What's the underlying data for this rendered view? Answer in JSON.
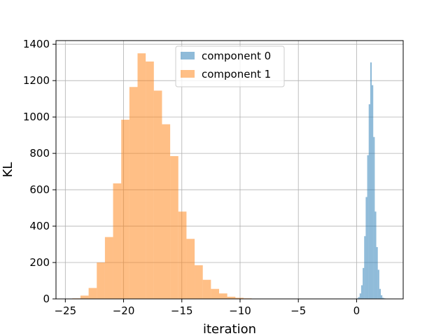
{
  "chart_data": {
    "type": "bar",
    "xlabel": "iteration",
    "ylabel": "KL",
    "xlim": [
      -25.8,
      4.0
    ],
    "ylim": [
      0,
      1420
    ],
    "xticks": [
      -25,
      -20,
      -15,
      -10,
      -5,
      0
    ],
    "yticks": [
      0,
      200,
      400,
      600,
      800,
      1000,
      1200,
      1400
    ],
    "grid": true,
    "legend_position": "top-center",
    "series": [
      {
        "name": "component 0",
        "color": "#1f77b4",
        "opacity": 0.5,
        "bin_edges": [
          0.0,
          0.13,
          0.26,
          0.39,
          0.52,
          0.65,
          0.78,
          0.91,
          1.04,
          1.17,
          1.3,
          1.43,
          1.56,
          1.69,
          1.82,
          1.95,
          2.08,
          2.21,
          2.34,
          2.47,
          2.6,
          2.73
        ],
        "counts": [
          3,
          10,
          30,
          75,
          170,
          345,
          560,
          790,
          1070,
          1300,
          1175,
          890,
          480,
          285,
          160,
          55,
          20,
          6,
          3,
          2,
          1
        ]
      },
      {
        "name": "component 1",
        "color": "#ff7f0e",
        "opacity": 0.5,
        "bin_edges": [
          -24.4,
          -23.7,
          -23.0,
          -22.3,
          -21.6,
          -20.9,
          -20.2,
          -19.5,
          -18.8,
          -18.1,
          -17.4,
          -16.7,
          -16.0,
          -15.3,
          -14.6,
          -13.9,
          -13.2,
          -12.5,
          -11.8,
          -11.1,
          -10.4,
          -9.7,
          -9.0
        ],
        "counts": [
          3,
          18,
          60,
          200,
          340,
          635,
          985,
          1165,
          1350,
          1305,
          1145,
          960,
          785,
          480,
          330,
          185,
          105,
          55,
          30,
          12,
          6,
          3
        ]
      }
    ]
  }
}
